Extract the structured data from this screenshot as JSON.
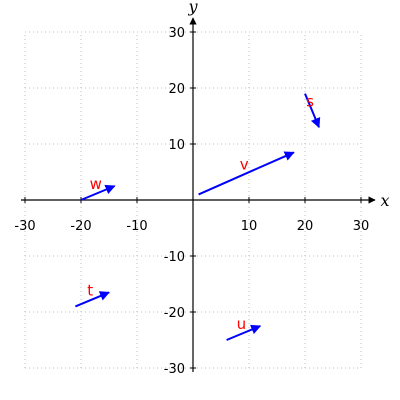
{
  "chart_data": {
    "type": "vector-field",
    "xlabel": "x",
    "ylabel": "y",
    "xlim": [
      -30,
      30
    ],
    "ylim": [
      -30,
      30
    ],
    "xticks": [
      -30,
      -20,
      -10,
      10,
      20,
      30
    ],
    "yticks": [
      -30,
      -20,
      -10,
      10,
      20,
      30
    ],
    "grid": true,
    "colors": {
      "vector": "#0000ff",
      "label": "#ff0000",
      "grid": "#b0b0b0",
      "axis": "#000000"
    },
    "vectors": [
      {
        "label": "w",
        "x": -20,
        "y": 0,
        "dx": 6,
        "dy": 2.5
      },
      {
        "label": "v",
        "x": 1,
        "y": 1,
        "dx": 17,
        "dy": 7.5
      },
      {
        "label": "s",
        "x": 20,
        "y": 19,
        "dx": 2.5,
        "dy": -6
      },
      {
        "label": "t",
        "x": -21,
        "y": -19,
        "dx": 6,
        "dy": 2.5
      },
      {
        "label": "u",
        "x": 6,
        "y": -25,
        "dx": 6,
        "dy": 2.5
      }
    ]
  }
}
